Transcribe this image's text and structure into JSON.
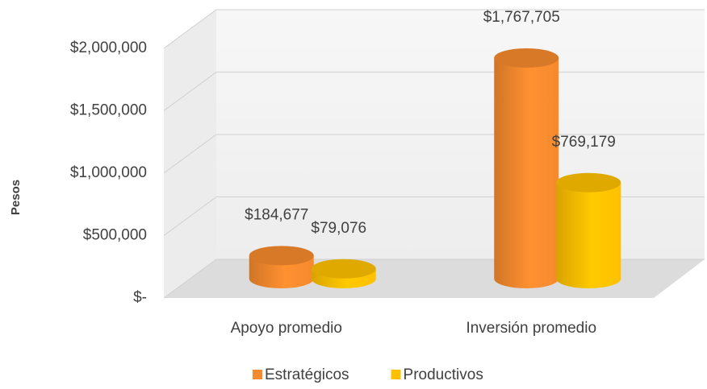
{
  "chart_data": {
    "type": "bar3d",
    "categories": [
      "Apoyo promedio",
      "Inversión promedio"
    ],
    "series": [
      {
        "name": "Estratégicos",
        "color": "#f58a2e",
        "values": [
          184677,
          1767705
        ],
        "value_labels": [
          "$184,677",
          "$1,767,705"
        ]
      },
      {
        "name": "Productivos",
        "color": "#ffc000",
        "values": [
          79076,
          769179
        ],
        "value_labels": [
          "$79,076",
          "$769,179"
        ]
      }
    ],
    "ylabel": "Pesos",
    "ylim": [
      0,
      2000000
    ],
    "yticks": [
      {
        "value": 0,
        "label": "$-"
      },
      {
        "value": 500000,
        "label": "$500,000"
      },
      {
        "value": 1000000,
        "label": "$1,000,000"
      },
      {
        "value": 1500000,
        "label": "$1,500,000"
      },
      {
        "value": 2000000,
        "label": "$2,000,000"
      }
    ],
    "grid": true,
    "legend": "bottom"
  }
}
